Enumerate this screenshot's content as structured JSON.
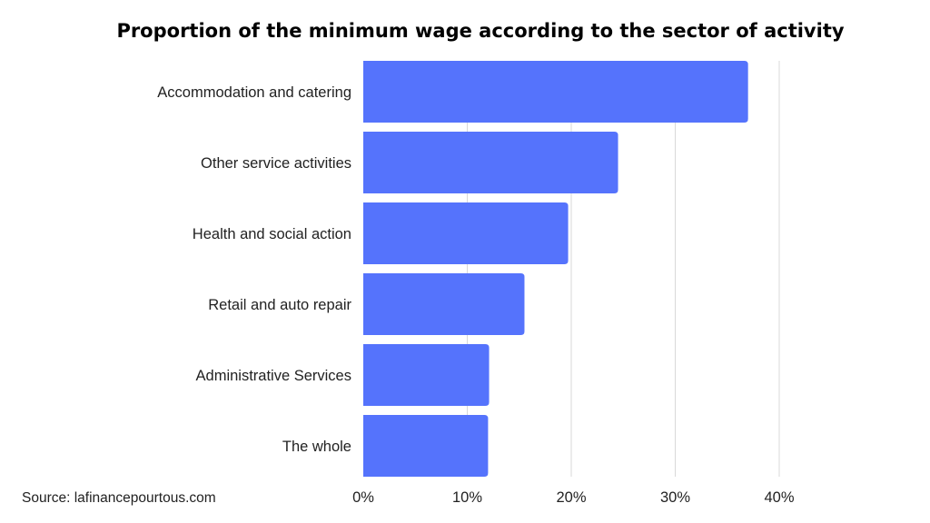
{
  "chart_data": {
    "type": "bar",
    "orientation": "horizontal",
    "title": "Proportion of the minimum wage according to the sector of activity",
    "categories": [
      "Accommodation and catering",
      "Other service activities",
      "Health and social action",
      "Retail and auto repair",
      "Administrative Services",
      "The whole"
    ],
    "values": [
      37,
      24.5,
      19.7,
      15.5,
      12.1,
      12
    ],
    "x_ticks": [
      "0%",
      "10%",
      "20%",
      "30%",
      "40%"
    ],
    "xlim": [
      0,
      40
    ],
    "grid": true,
    "bar_color": "#5573FC",
    "source": "Source: lafinancepourtous.com"
  }
}
